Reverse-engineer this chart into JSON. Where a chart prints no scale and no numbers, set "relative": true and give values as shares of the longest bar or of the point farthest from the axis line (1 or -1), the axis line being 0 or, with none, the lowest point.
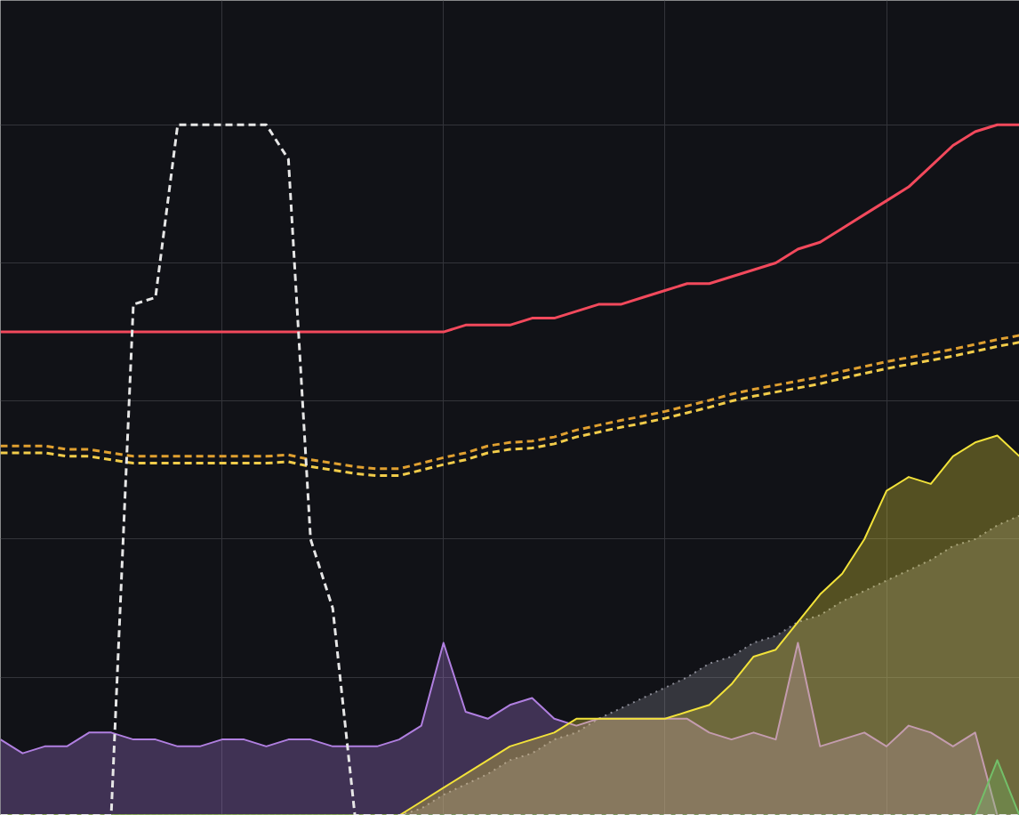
{
  "chart_data": {
    "type": "line",
    "relative": true,
    "grid": true,
    "categories": [
      null,
      null,
      null,
      null,
      null,
      null,
      null,
      null,
      null,
      null,
      null,
      null,
      null,
      null,
      null,
      null,
      null,
      null,
      null,
      null,
      null,
      null,
      null,
      null,
      null,
      null,
      null,
      null,
      null,
      null,
      null,
      null,
      null,
      null,
      null,
      null,
      null,
      null,
      null,
      null,
      null,
      null,
      null,
      null,
      null,
      null,
      null
    ],
    "series": [
      {
        "type": "area",
        "color": "#8b8c96",
        "line_style": "dotted",
        "values": [
          0,
          0,
          0,
          0,
          0,
          0,
          0,
          0,
          0,
          0,
          0,
          0,
          0,
          0,
          0,
          0,
          0,
          0,
          0,
          0.01,
          0.03,
          0.045,
          0.06,
          0.08,
          0.09,
          0.11,
          0.12,
          0.14,
          0.155,
          0.17,
          0.185,
          0.2,
          0.22,
          0.23,
          0.25,
          0.26,
          0.28,
          0.29,
          0.31,
          0.325,
          0.34,
          0.355,
          0.37,
          0.39,
          0.4,
          0.42,
          0.434
        ]
      },
      {
        "type": "area",
        "color": "#b07fe0",
        "line_style": "solid",
        "values": [
          0.11,
          0.09,
          0.1,
          0.1,
          0.12,
          0.12,
          0.11,
          0.11,
          0.1,
          0.1,
          0.11,
          0.11,
          0.1,
          0.11,
          0.11,
          0.1,
          0.1,
          0.1,
          0.11,
          0.13,
          0.25,
          0.15,
          0.14,
          0.16,
          0.17,
          0.14,
          0.13,
          0.14,
          0.14,
          0.14,
          0.14,
          0.14,
          0.12,
          0.11,
          0.12,
          0.11,
          0.25,
          0.1,
          0.11,
          0.12,
          0.1,
          0.13,
          0.12,
          0.1,
          0.12,
          0,
          0
        ]
      },
      {
        "type": "area",
        "color": "#f2e23a",
        "line_style": "solid",
        "values": [
          0,
          0,
          0,
          0,
          0,
          0,
          0,
          0,
          0,
          0,
          0,
          0,
          0,
          0,
          0,
          0,
          0,
          0,
          0,
          0.02,
          0.04,
          0.06,
          0.08,
          0.1,
          0.11,
          0.12,
          0.14,
          0.14,
          0.14,
          0.14,
          0.14,
          0.15,
          0.16,
          0.19,
          0.23,
          0.24,
          0.28,
          0.32,
          0.35,
          0.4,
          0.47,
          0.49,
          0.48,
          0.52,
          0.54,
          0.55,
          0.52
        ]
      },
      {
        "type": "area",
        "color": "#73bf69",
        "line_style": "solid",
        "values": [
          0,
          0,
          0,
          0,
          0,
          0,
          0,
          0,
          0,
          0,
          0,
          0,
          0,
          0,
          0,
          0,
          0,
          0,
          0,
          0,
          0,
          0,
          0,
          0,
          0,
          0,
          0,
          0,
          0,
          0,
          0,
          0,
          0,
          0,
          0,
          0,
          0,
          0,
          0,
          0,
          0,
          0,
          0,
          0,
          0,
          0.08,
          0
        ]
      },
      {
        "color": "#e0a030",
        "line_style": "dashed",
        "values": [
          0.535,
          0.535,
          0.535,
          0.53,
          0.53,
          0.525,
          0.52,
          0.52,
          0.52,
          0.52,
          0.52,
          0.52,
          0.52,
          0.522,
          0.515,
          0.51,
          0.505,
          0.502,
          0.502,
          0.51,
          0.518,
          0.525,
          0.535,
          0.54,
          0.542,
          0.548,
          0.558,
          0.565,
          0.572,
          0.578,
          0.585,
          0.593,
          0.601,
          0.61,
          0.617,
          0.623,
          0.629,
          0.635,
          0.643,
          0.65,
          0.657,
          0.663,
          0.669,
          0.675,
          0.682,
          0.689,
          0.695
        ]
      },
      {
        "color": "#f2cc4a",
        "line_style": "dashed",
        "values": [
          0.525,
          0.525,
          0.525,
          0.52,
          0.52,
          0.515,
          0.51,
          0.51,
          0.51,
          0.51,
          0.51,
          0.51,
          0.51,
          0.512,
          0.505,
          0.5,
          0.495,
          0.492,
          0.492,
          0.5,
          0.508,
          0.515,
          0.525,
          0.53,
          0.532,
          0.538,
          0.548,
          0.555,
          0.562,
          0.568,
          0.575,
          0.583,
          0.591,
          0.6,
          0.607,
          0.613,
          0.619,
          0.625,
          0.633,
          0.64,
          0.647,
          0.653,
          0.659,
          0.665,
          0.672,
          0.679,
          0.685
        ]
      },
      {
        "color": "#f2495c",
        "line_style": "solid",
        "values": [
          0.7,
          0.7,
          0.7,
          0.7,
          0.7,
          0.7,
          0.7,
          0.7,
          0.7,
          0.7,
          0.7,
          0.7,
          0.7,
          0.7,
          0.7,
          0.7,
          0.7,
          0.7,
          0.7,
          0.7,
          0.7,
          0.71,
          0.71,
          0.71,
          0.72,
          0.72,
          0.73,
          0.74,
          0.74,
          0.75,
          0.76,
          0.77,
          0.77,
          0.78,
          0.79,
          0.8,
          0.82,
          0.83,
          0.85,
          0.87,
          0.89,
          0.91,
          0.94,
          0.97,
          0.99,
          1,
          1
        ]
      },
      {
        "color": "#e6e6e6",
        "line_style": "dashed",
        "values": [
          0,
          0,
          0,
          0,
          0,
          0,
          0.74,
          0.75,
          1,
          1,
          1,
          1,
          1,
          0.95,
          0.4,
          0.3,
          0,
          0,
          0,
          0,
          0,
          0,
          0,
          0,
          0,
          0,
          0,
          0,
          0,
          0,
          0,
          0,
          0,
          0,
          0,
          0,
          0,
          0,
          0,
          0,
          0,
          0,
          0,
          0,
          0,
          0,
          0
        ]
      }
    ]
  }
}
